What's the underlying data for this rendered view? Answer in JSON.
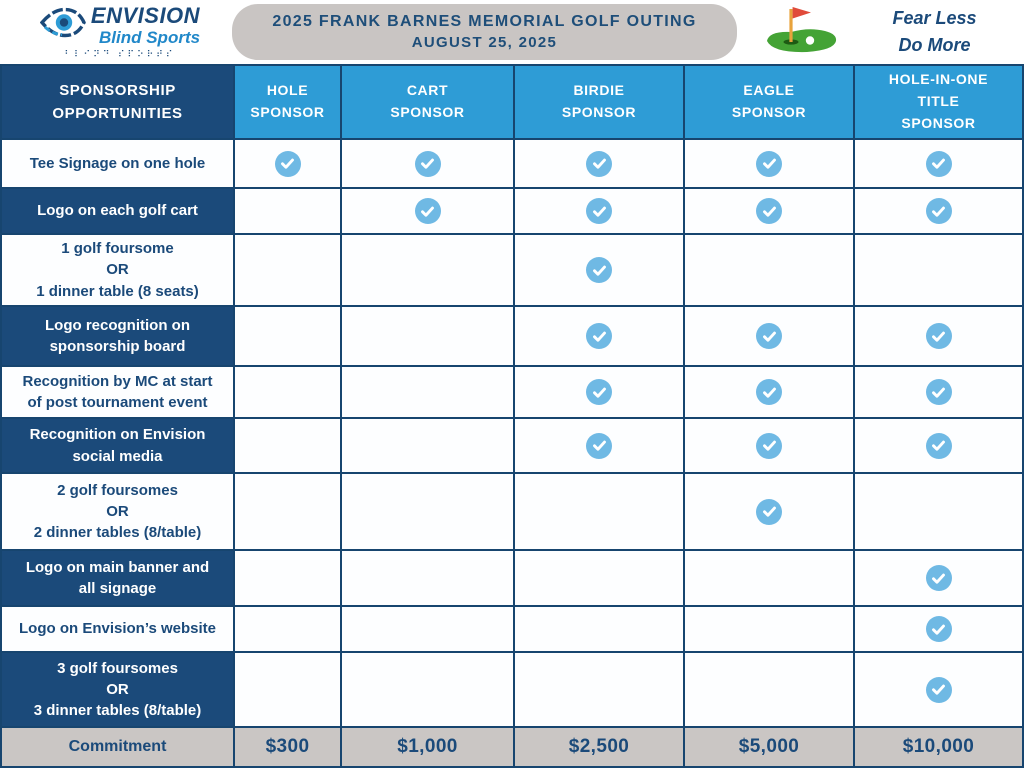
{
  "header": {
    "logo": {
      "name_top": "ENVISION",
      "name_bottom": "Blind Sports",
      "braille": "⠃⠇⠊⠝⠙ ⠎⠏⠕⠗⠞⠎"
    },
    "title_line1": "2025 FRANK BARNES MEMORIAL GOLF OUTING",
    "title_line2": "AUGUST 25, 2025",
    "motto_line1": "Fear Less",
    "motto_line2": "Do More"
  },
  "table": {
    "label_header": {
      "lines": [
        "SPONSORSHIP",
        "OPPORTUNITIES"
      ]
    },
    "columns": [
      {
        "id": "hole-sponsor",
        "lines": [
          "HOLE",
          "SPONSOR"
        ]
      },
      {
        "id": "cart-sponsor",
        "lines": [
          "CART",
          "SPONSOR"
        ]
      },
      {
        "id": "birdie-sponsor",
        "lines": [
          "BIRDIE",
          "SPONSOR"
        ]
      },
      {
        "id": "eagle-sponsor",
        "lines": [
          "EAGLE",
          "SPONSOR"
        ]
      },
      {
        "id": "hole-in-one-title-sponsor",
        "lines": [
          "HOLE-IN-ONE",
          "TITLE",
          "SPONSOR"
        ]
      }
    ],
    "rows": [
      {
        "lines": [
          "Tee Signage on one hole"
        ],
        "variant": "light",
        "checks": [
          true,
          true,
          true,
          true,
          true
        ]
      },
      {
        "lines": [
          "Logo on each golf cart"
        ],
        "variant": "dark",
        "checks": [
          false,
          true,
          true,
          true,
          true
        ]
      },
      {
        "lines": [
          "1 golf foursome",
          "OR",
          "1 dinner table (8 seats)"
        ],
        "variant": "light",
        "checks": [
          false,
          false,
          true,
          false,
          false
        ]
      },
      {
        "lines": [
          "Logo recognition on",
          "sponsorship board"
        ],
        "variant": "dark",
        "checks": [
          false,
          false,
          true,
          true,
          true
        ]
      },
      {
        "lines": [
          "Recognition by MC at start",
          "of post tournament event"
        ],
        "variant": "light",
        "checks": [
          false,
          false,
          true,
          true,
          true
        ]
      },
      {
        "lines": [
          "Recognition on Envision",
          "social media"
        ],
        "variant": "dark",
        "checks": [
          false,
          false,
          true,
          true,
          true
        ]
      },
      {
        "lines": [
          "2 golf foursomes",
          "OR",
          "2 dinner tables (8/table)"
        ],
        "variant": "light",
        "checks": [
          false,
          false,
          false,
          true,
          false
        ]
      },
      {
        "lines": [
          "Logo on main banner and",
          "all signage"
        ],
        "variant": "dark",
        "checks": [
          false,
          false,
          false,
          false,
          true
        ]
      },
      {
        "lines": [
          "Logo on Envision’s website"
        ],
        "variant": "light",
        "checks": [
          false,
          false,
          false,
          false,
          true
        ]
      },
      {
        "lines": [
          "3 golf foursomes",
          "OR",
          "3 dinner tables (8/table)"
        ],
        "variant": "dark",
        "checks": [
          false,
          false,
          false,
          false,
          true
        ]
      }
    ],
    "commitment": {
      "label": "Commitment",
      "values": [
        "$300",
        "$1,000",
        "$2,500",
        "$5,000",
        "$10,000"
      ]
    }
  },
  "colors": {
    "navy": "#1B4A7A",
    "header_blue": "#2E9CD6",
    "check_blue": "#6FB9E4",
    "banner_gray": "#C9C5C3",
    "grid_line": "#17456F"
  },
  "icons": {
    "eye": "envision-eye-icon",
    "golf_green": "golf-green-flag-icon",
    "check": "check-icon"
  }
}
